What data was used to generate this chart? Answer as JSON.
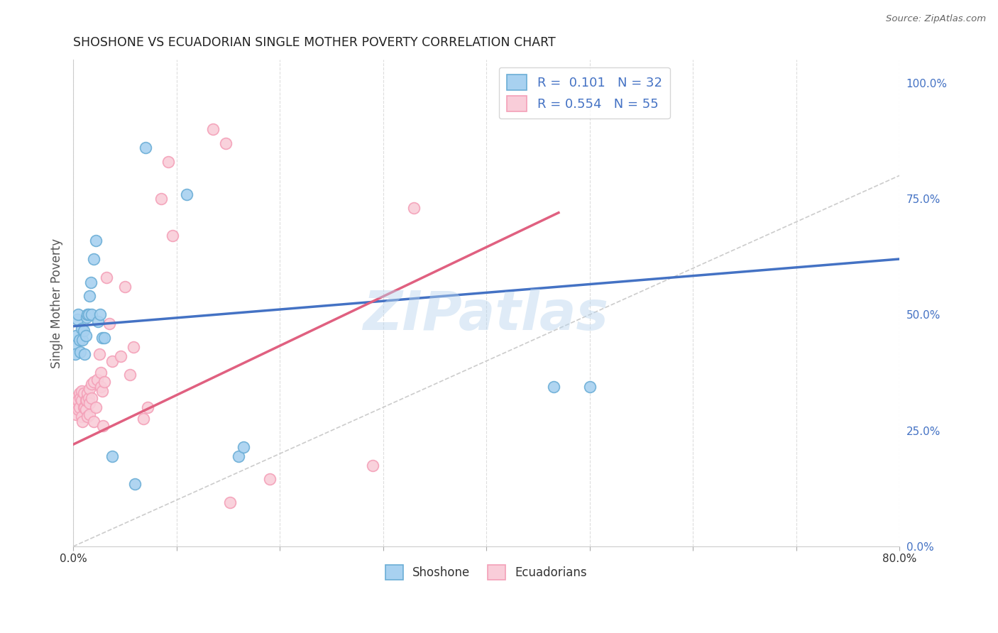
{
  "title": "SHOSHONE VS ECUADORIAN SINGLE MOTHER POVERTY CORRELATION CHART",
  "source": "Source: ZipAtlas.com",
  "ylabel": "Single Mother Poverty",
  "xmin": 0.0,
  "xmax": 0.8,
  "ymin": 0.0,
  "ymax": 1.05,
  "xtick_positions": [
    0.0,
    0.1,
    0.2,
    0.3,
    0.4,
    0.5,
    0.6,
    0.7,
    0.8
  ],
  "xtick_labels": [
    "0.0%",
    "",
    "",
    "",
    "",
    "",
    "",
    "",
    "80.0%"
  ],
  "ytick_positions": [
    0.0,
    0.25,
    0.5,
    0.75,
    1.0
  ],
  "ytick_labels": [
    "0.0%",
    "25.0%",
    "50.0%",
    "75.0%",
    "100.0%"
  ],
  "shoshone_color": "#6baed6",
  "shoshone_fill": "#a8d1f0",
  "ecuadorian_color": "#f4a0b8",
  "ecuadorian_fill": "#f9cdd9",
  "shoshone_R": 0.101,
  "shoshone_N": 32,
  "ecuadorian_R": 0.554,
  "ecuadorian_N": 55,
  "watermark": "ZIPatlas",
  "background_color": "#ffffff",
  "grid_color": "#dddddd",
  "shoshone_line_x": [
    0.0,
    0.8
  ],
  "shoshone_line_y": [
    0.475,
    0.62
  ],
  "ecuadorian_line_x": [
    0.0,
    0.47
  ],
  "ecuadorian_line_y": [
    0.22,
    0.72
  ],
  "diagonal_color": "#cccccc",
  "shoshone_points_x": [
    0.001,
    0.002,
    0.003,
    0.004,
    0.005,
    0.006,
    0.007,
    0.008,
    0.009,
    0.01,
    0.011,
    0.012,
    0.013,
    0.014,
    0.015,
    0.016,
    0.017,
    0.018,
    0.02,
    0.022,
    0.024,
    0.026,
    0.028,
    0.03,
    0.038,
    0.06,
    0.07,
    0.11,
    0.16,
    0.165,
    0.465,
    0.5
  ],
  "shoshone_points_y": [
    0.435,
    0.415,
    0.455,
    0.49,
    0.5,
    0.445,
    0.42,
    0.47,
    0.445,
    0.465,
    0.415,
    0.455,
    0.495,
    0.5,
    0.5,
    0.54,
    0.57,
    0.5,
    0.62,
    0.66,
    0.485,
    0.5,
    0.45,
    0.45,
    0.195,
    0.135,
    0.86,
    0.76,
    0.195,
    0.215,
    0.345,
    0.345
  ],
  "ecuadorian_points_x": [
    0.001,
    0.002,
    0.003,
    0.004,
    0.005,
    0.005,
    0.006,
    0.006,
    0.007,
    0.008,
    0.008,
    0.008,
    0.009,
    0.01,
    0.01,
    0.011,
    0.012,
    0.012,
    0.013,
    0.014,
    0.014,
    0.015,
    0.016,
    0.016,
    0.016,
    0.018,
    0.018,
    0.02,
    0.02,
    0.022,
    0.023,
    0.025,
    0.027,
    0.027,
    0.028,
    0.029,
    0.03,
    0.032,
    0.035,
    0.038,
    0.046,
    0.05,
    0.055,
    0.058,
    0.068,
    0.072,
    0.085,
    0.092,
    0.096,
    0.135,
    0.148,
    0.152,
    0.19,
    0.29,
    0.33
  ],
  "ecuadorian_points_y": [
    0.31,
    0.32,
    0.285,
    0.3,
    0.295,
    0.315,
    0.3,
    0.33,
    0.32,
    0.28,
    0.315,
    0.335,
    0.27,
    0.3,
    0.33,
    0.3,
    0.295,
    0.315,
    0.315,
    0.28,
    0.33,
    0.32,
    0.285,
    0.31,
    0.34,
    0.32,
    0.35,
    0.27,
    0.355,
    0.3,
    0.36,
    0.415,
    0.345,
    0.375,
    0.335,
    0.26,
    0.355,
    0.58,
    0.48,
    0.4,
    0.41,
    0.56,
    0.37,
    0.43,
    0.275,
    0.3,
    0.75,
    0.83,
    0.67,
    0.9,
    0.87,
    0.095,
    0.145,
    0.175,
    0.73
  ]
}
